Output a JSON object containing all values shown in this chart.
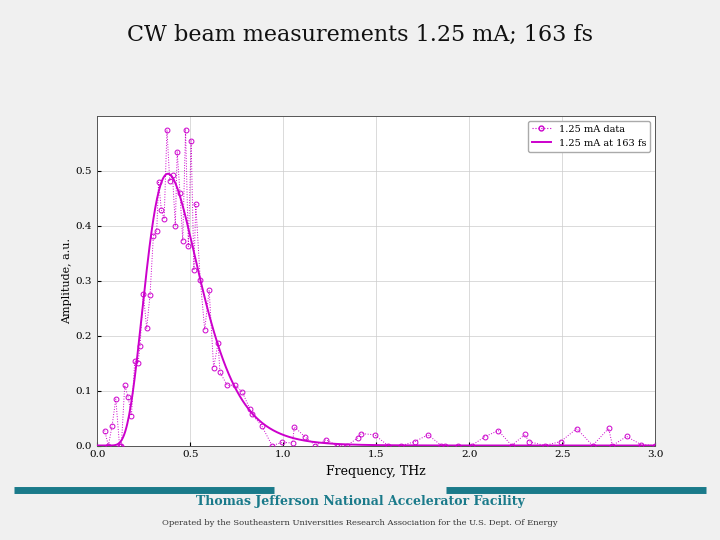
{
  "title": "CW beam measurements 1.25 mA; 163 fs",
  "title_fontsize": 16,
  "xlabel": "Frequency, THz",
  "ylabel": "Amplitude, a.u.",
  "xlabel_fontsize": 9,
  "ylabel_fontsize": 8,
  "xlim": [
    0,
    3
  ],
  "ylim": [
    0,
    0.6
  ],
  "xticks": [
    0,
    0.5,
    1,
    1.5,
    2,
    2.5,
    3
  ],
  "yticks": [
    0,
    0.1,
    0.2,
    0.3,
    0.4,
    0.5
  ],
  "color": "#cc00cc",
  "legend_data_label": "1.25 mA data",
  "legend_fit_label": "1.25 mA at 163 fs",
  "background": "#f0f0f0",
  "plot_bg": "#ffffff",
  "footer_text": "Thomas Jefferson National Accelerator Facility",
  "footer_sub": "Operated by the Southeastern Universities Research Association for the U.S. Dept. Of Energy",
  "teal_color": "#1a7a8a"
}
